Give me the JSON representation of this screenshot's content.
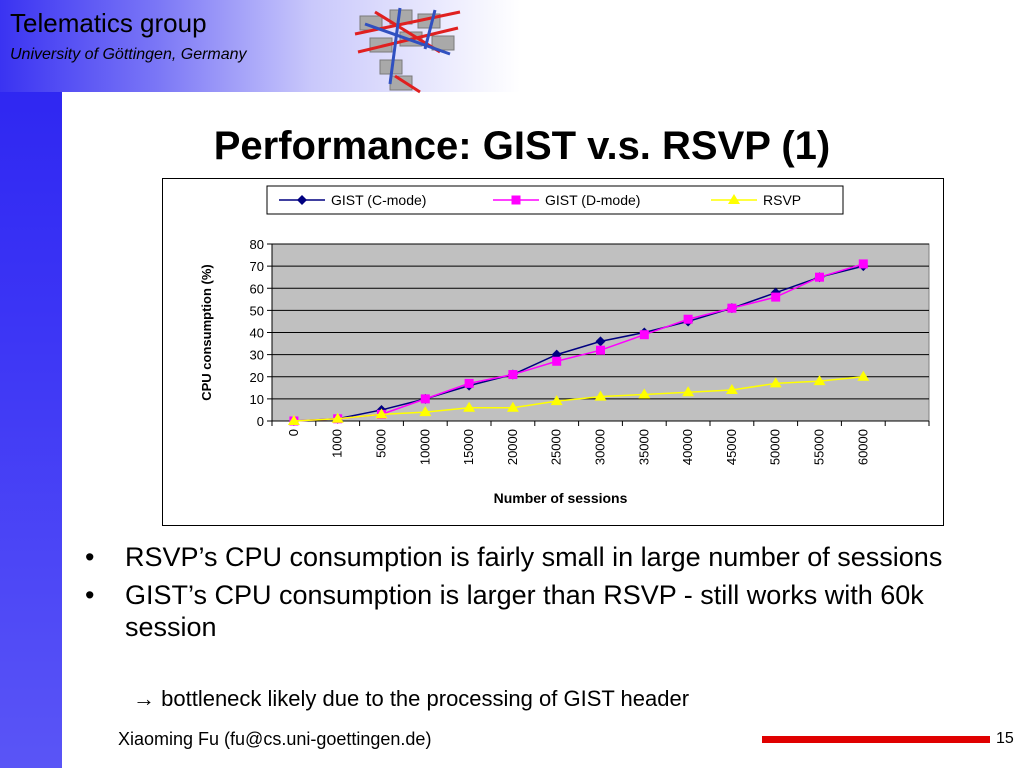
{
  "header": {
    "org_name": "Telematics group",
    "org_sub": "University of Göttingen, Germany"
  },
  "slide": {
    "title": "Performance: GIST v.s. RSVP (1)"
  },
  "bullets": [
    "RSVP’s CPU consumption is fairly small in large number of sessions",
    "GIST’s CPU consumption is larger than RSVP - still works with 60k session"
  ],
  "bullet_marker": "•",
  "sub_bullet": {
    "arrow": "→",
    "text": "bottleneck likely due to the processing of GIST header"
  },
  "footer": {
    "author": "Xiaoming Fu (fu@cs.uni-goettingen.de)",
    "page": "15"
  },
  "colors": {
    "plot_bg": "#c0c0c0",
    "gist_c": "#000080",
    "gist_d": "#ff00ff",
    "rsvp": "#ffff00",
    "accent_red": "#e00000"
  },
  "chart_data": {
    "type": "line",
    "xlabel": "Number of sessions",
    "ylabel": "CPU consumption (%)",
    "categories": [
      "0",
      "1000",
      "5000",
      "10000",
      "15000",
      "20000",
      "25000",
      "30000",
      "35000",
      "40000",
      "45000",
      "50000",
      "55000",
      "60000"
    ],
    "ylim": [
      0,
      80
    ],
    "yticks": [
      0,
      10,
      20,
      30,
      40,
      50,
      60,
      70,
      80
    ],
    "grid": true,
    "legend_position": "top",
    "series": [
      {
        "name": "GIST (C-mode)",
        "marker": "diamond",
        "values": [
          0,
          1,
          5,
          10,
          16,
          21,
          30,
          36,
          40,
          45,
          51,
          58,
          65,
          70
        ]
      },
      {
        "name": "GIST (D-mode)",
        "marker": "square",
        "values": [
          0,
          1,
          3,
          10,
          17,
          21,
          27,
          32,
          39,
          46,
          51,
          56,
          65,
          71
        ]
      },
      {
        "name": "RSVP",
        "marker": "triangle",
        "values": [
          0,
          1,
          3,
          4,
          6,
          6,
          9,
          11,
          12,
          13,
          14,
          17,
          18,
          20
        ]
      }
    ]
  }
}
